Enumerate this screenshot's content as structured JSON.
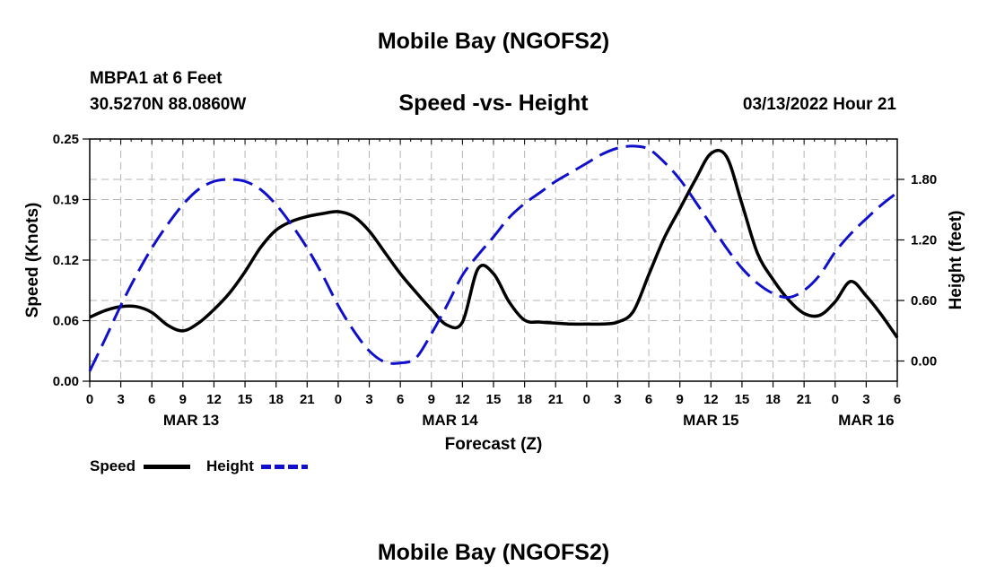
{
  "header": {
    "title": "Mobile Bay (NGOFS2)",
    "station": "MBPA1 at 6 Feet",
    "coords": "30.5270N  88.0860W",
    "subtitle": "Speed -vs- Height",
    "timestamp": "03/13/2022 Hour 21"
  },
  "footer": {
    "title": "Mobile Bay (NGOFS2)"
  },
  "chart_data": {
    "type": "line",
    "title": "Speed -vs- Height",
    "xlabel": "Forecast (Z)",
    "ylabel": "Speed (Knots)",
    "y2label": "Height (feet)",
    "x_range": [
      0,
      78
    ],
    "ylim": [
      0,
      0.25
    ],
    "y2lim": [
      -0.2,
      2.2
    ],
    "x_tick_values": [
      0,
      3,
      6,
      9,
      12,
      15,
      18,
      21,
      24,
      27,
      30,
      33,
      36,
      39,
      42,
      45,
      48,
      51,
      54,
      57,
      60,
      63,
      66,
      69,
      72,
      75,
      78
    ],
    "x_tick_labels": [
      "0",
      "3",
      "6",
      "9",
      "12",
      "15",
      "18",
      "21",
      "0",
      "3",
      "6",
      "9",
      "12",
      "15",
      "18",
      "21",
      "0",
      "3",
      "6",
      "9",
      "12",
      "15",
      "18",
      "21",
      "0",
      "3",
      "6"
    ],
    "date_labels": [
      {
        "label": "MAR 13",
        "x": 9.8
      },
      {
        "label": "MAR 14",
        "x": 34.8
      },
      {
        "label": "MAR 15",
        "x": 60.0
      },
      {
        "label": "MAR 16",
        "x": 75.0
      }
    ],
    "y_ticks": [
      "0.00",
      "0.06",
      "0.12",
      "0.19",
      "0.25"
    ],
    "y_tick_values": [
      0,
      0.0625,
      0.125,
      0.1875,
      0.25
    ],
    "y2_ticks": [
      "0.00",
      "0.60",
      "1.20",
      "1.80"
    ],
    "y2_tick_values": [
      0,
      0.6,
      1.2,
      1.8
    ],
    "grid": true,
    "legend": [
      {
        "name": "Speed",
        "color": "#000000",
        "style": "solid"
      },
      {
        "name": "Height",
        "color": "#1010cc",
        "style": "dashed"
      }
    ],
    "series": [
      {
        "name": "Speed",
        "axis": "left",
        "color": "#000000",
        "x": [
          0,
          1.5,
          3,
          4.5,
          6,
          7.5,
          9,
          10.5,
          12,
          13.5,
          15,
          16.5,
          18,
          19.5,
          21,
          22.5,
          24,
          25.5,
          27,
          28.5,
          30,
          31.5,
          33,
          34.5,
          36,
          37.5,
          39,
          40.5,
          42,
          43.5,
          45,
          46.5,
          48,
          49.5,
          51,
          52.5,
          54,
          55.5,
          57,
          58.5,
          60,
          61.5,
          63,
          64.5,
          66,
          67.5,
          69,
          70.5,
          72,
          73.5,
          75,
          76.5,
          78
        ],
        "y": [
          0.066,
          0.073,
          0.077,
          0.077,
          0.071,
          0.058,
          0.052,
          0.06,
          0.074,
          0.091,
          0.113,
          0.138,
          0.156,
          0.165,
          0.17,
          0.173,
          0.175,
          0.17,
          0.155,
          0.133,
          0.111,
          0.092,
          0.074,
          0.058,
          0.061,
          0.116,
          0.111,
          0.082,
          0.063,
          0.061,
          0.06,
          0.059,
          0.059,
          0.059,
          0.061,
          0.072,
          0.11,
          0.148,
          0.178,
          0.208,
          0.235,
          0.232,
          0.183,
          0.132,
          0.105,
          0.084,
          0.07,
          0.068,
          0.082,
          0.103,
          0.088,
          0.068,
          0.045
        ]
      },
      {
        "name": "Height",
        "axis": "right",
        "color": "#1010cc",
        "x": [
          0,
          1.5,
          3,
          4.5,
          6,
          7.5,
          9,
          10.5,
          12,
          13.5,
          15,
          16.5,
          18,
          19.5,
          21,
          22.5,
          24,
          25.5,
          27,
          28.5,
          30,
          31.5,
          33,
          34.5,
          36,
          37.5,
          39,
          40.5,
          42,
          43.5,
          45,
          46.5,
          48,
          49.5,
          51,
          52.5,
          54,
          55.5,
          57,
          58.5,
          60,
          61.5,
          63,
          64.5,
          66,
          67.5,
          69,
          70.5,
          72,
          73.5,
          75,
          76.5,
          78
        ],
        "y": [
          -0.1,
          0.22,
          0.55,
          0.85,
          1.12,
          1.35,
          1.55,
          1.7,
          1.78,
          1.8,
          1.78,
          1.7,
          1.55,
          1.35,
          1.12,
          0.85,
          0.55,
          0.3,
          0.1,
          -0.01,
          -0.02,
          0.03,
          0.27,
          0.55,
          0.85,
          1.05,
          1.23,
          1.42,
          1.56,
          1.67,
          1.78,
          1.87,
          1.96,
          2.05,
          2.11,
          2.13,
          2.1,
          1.97,
          1.8,
          1.58,
          1.35,
          1.12,
          0.92,
          0.77,
          0.67,
          0.63,
          0.7,
          0.85,
          1.08,
          1.26,
          1.41,
          1.55,
          1.67
        ]
      }
    ]
  }
}
